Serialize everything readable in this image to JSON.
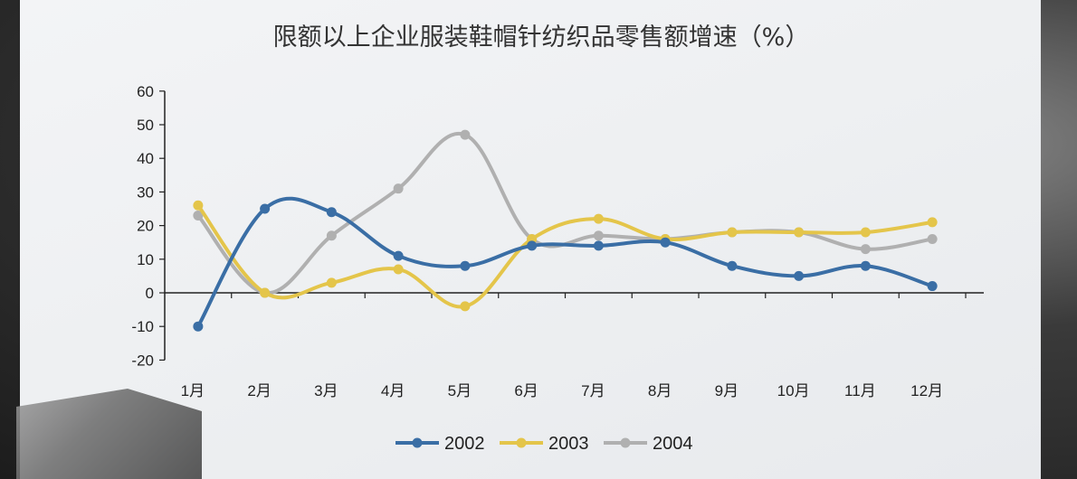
{
  "chart_data": {
    "type": "line",
    "title": "限额以上企业服装鞋帽针纺织品零售额增速（%）",
    "categories": [
      "1月",
      "2月",
      "3月",
      "4月",
      "5月",
      "6月",
      "7月",
      "8月",
      "9月",
      "10月",
      "11月",
      "12月"
    ],
    "ylim": [
      -20,
      60
    ],
    "yticks": [
      60,
      50,
      40,
      30,
      20,
      10,
      0,
      -10,
      -20
    ],
    "grid": false,
    "legend_position": "bottom",
    "series": [
      {
        "name": "2002",
        "color": "#3a6ea5",
        "values": [
          -10,
          25,
          24,
          11,
          8,
          14,
          14,
          15,
          8,
          5,
          8,
          2
        ]
      },
      {
        "name": "2003",
        "color": "#e4c54a",
        "values": [
          26,
          0,
          3,
          7,
          -4,
          16,
          22,
          16,
          18,
          18,
          18,
          21
        ]
      },
      {
        "name": "2004",
        "color": "#b0b0b0",
        "values": [
          23,
          0,
          17,
          31,
          47,
          16,
          17,
          16,
          18,
          18,
          13,
          16
        ]
      }
    ]
  }
}
